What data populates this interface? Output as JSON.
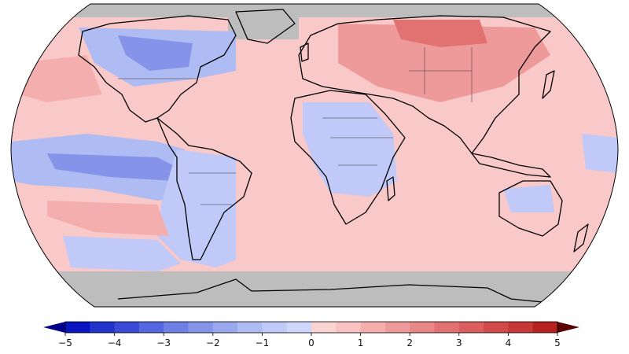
{
  "map": {
    "projection": "robinson",
    "missing_color": "#bdbdbd",
    "coastline_color": "#000000"
  },
  "colorbar": {
    "min": -5,
    "max": 5,
    "colors": [
      "#0a14c0",
      "#2233cc",
      "#3a4bd6",
      "#5566de",
      "#6f7fe4",
      "#8594e8",
      "#9aa8ee",
      "#aebcf3",
      "#c0c9f7",
      "#d0d6fb",
      "#fbd3d3",
      "#f8c2c2",
      "#f4aeae",
      "#ef9a9a",
      "#e98686",
      "#e27272",
      "#da5e5e",
      "#d14b4b",
      "#c63737",
      "#b62222"
    ],
    "ticks": [
      "−5",
      "−4",
      "−3",
      "−2",
      "−1",
      "0",
      "1",
      "2",
      "3",
      "4",
      "5"
    ],
    "xlabel": "",
    "ylabel": ""
  }
}
